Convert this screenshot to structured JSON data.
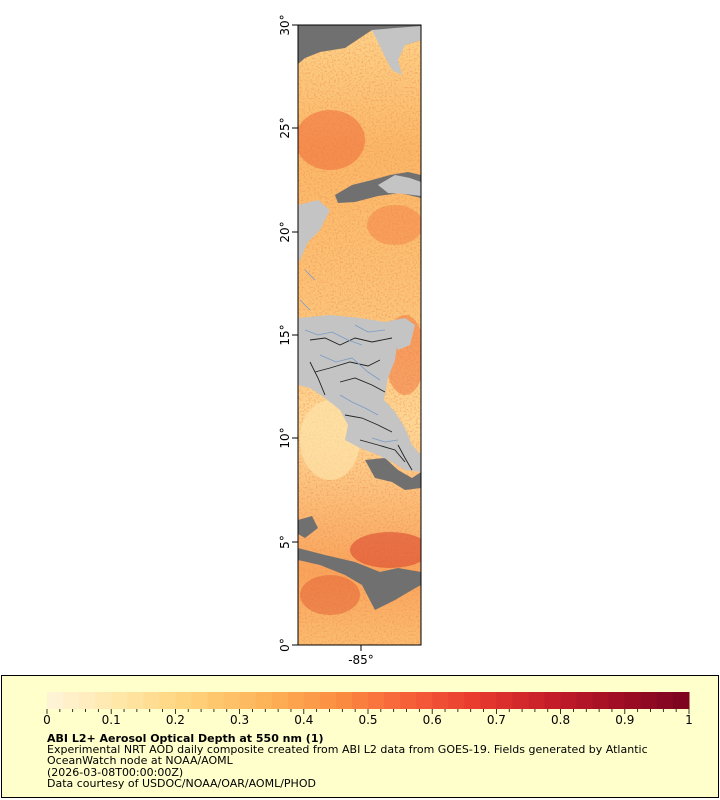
{
  "map": {
    "lat_ticks": [
      "0°",
      "5°",
      "10°",
      "15°",
      "20°",
      "25°",
      "30°"
    ],
    "lon_ticks": [
      "-85°"
    ],
    "lat_range": [
      0,
      30
    ],
    "colors": {
      "land": "#c4c4c4",
      "no_data": "#707070",
      "borders": "#222222",
      "rivers": "#7a9cc6"
    }
  },
  "legend": {
    "title": "ABI L2+ Aerosol Optical Depth at 550 nm (1)",
    "description": "Experimental NRT AOD daily composite created from ABI L2 data from GOES-19. Fields generated by Atlantic OceanWatch node at NOAA/AOML",
    "date": "(2026-03-08T00:00:00Z)",
    "credit": "Data courtesy of USDOC/NOAA/OAR/AOML/PHOD",
    "ticks": [
      "0",
      "0.1",
      "0.2",
      "0.3",
      "0.4",
      "0.5",
      "0.6",
      "0.7",
      "0.8",
      "0.9",
      "1"
    ],
    "range": [
      0,
      1
    ],
    "colors": [
      "#fff5dc",
      "#ffe7a8",
      "#ffd27a",
      "#fdb55a",
      "#fc9142",
      "#f7633a",
      "#e83a2f",
      "#c71f2a",
      "#a00d24",
      "#7a0320"
    ]
  }
}
